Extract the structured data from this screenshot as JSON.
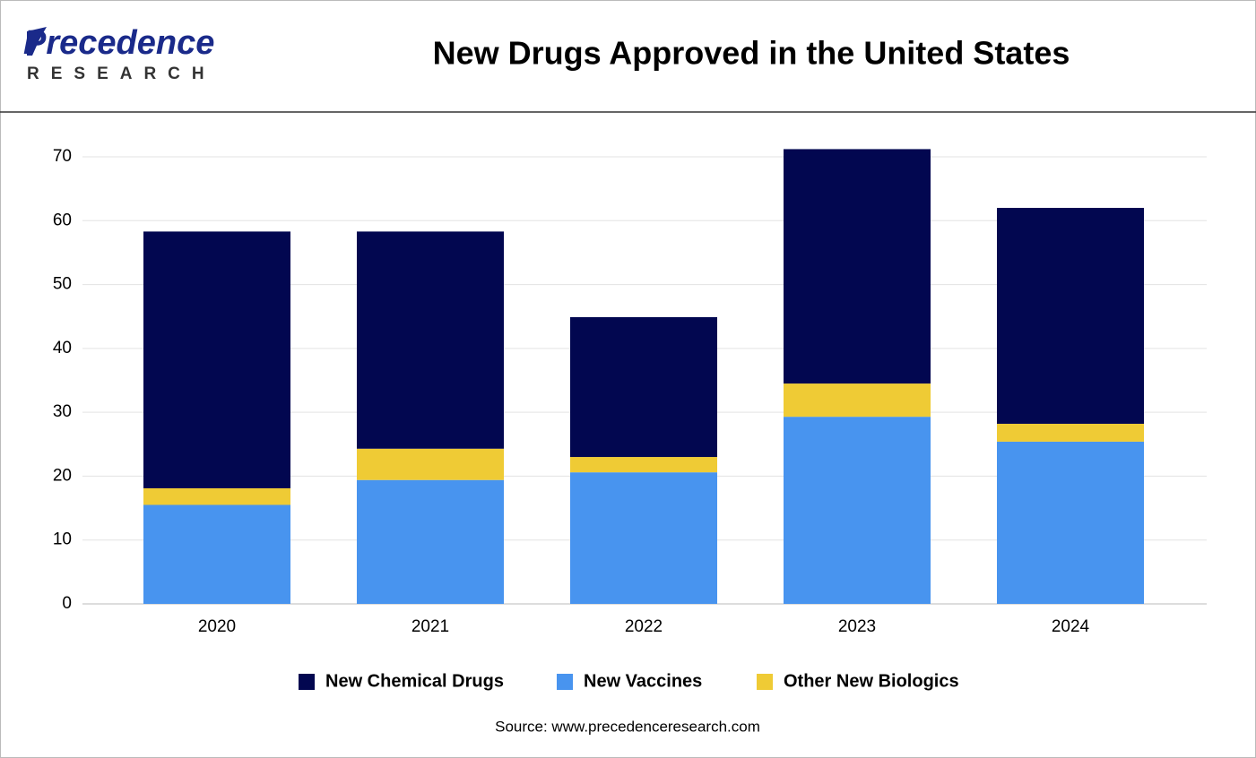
{
  "logo": {
    "name": "Precedence",
    "tagline": "RESEARCH"
  },
  "chart_data": {
    "type": "stacked-bar",
    "title": "New Drugs Approved in the United States",
    "categories": [
      "2020",
      "2021",
      "2022",
      "2023",
      "2024"
    ],
    "series": [
      {
        "name": "New Chemical Drugs",
        "color": "#020750",
        "values": [
          40.2,
          34.0,
          21.9,
          36.7,
          33.8
        ]
      },
      {
        "name": "New Vaccines",
        "color": "#4894ef",
        "values": [
          15.5,
          19.4,
          20.6,
          29.3,
          25.4
        ]
      },
      {
        "name": "Other New Biologics",
        "color": "#efcb35",
        "values": [
          2.6,
          4.9,
          2.4,
          5.2,
          2.8
        ]
      }
    ],
    "ylim": [
      0,
      70
    ],
    "yticks": [
      0,
      10,
      20,
      30,
      40,
      50,
      60,
      70
    ],
    "grid": true,
    "legend": "bottom",
    "source": "Source: www.precedenceresearch.com"
  }
}
